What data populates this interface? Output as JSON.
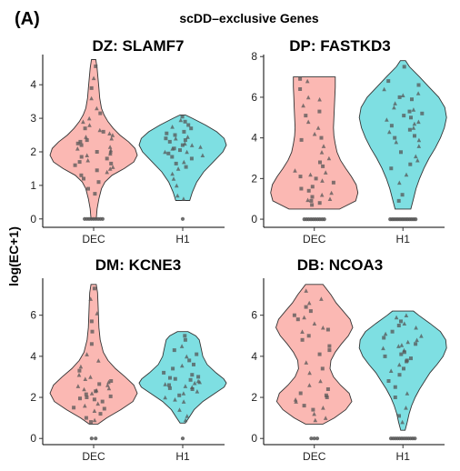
{
  "figure": {
    "panel_label": "(A)",
    "title": "scDD–exclusive Genes",
    "ylabel": "log(EC+1)"
  },
  "colors": {
    "DEC": "#F8766D",
    "H1": "#00BFC4",
    "DEC_fill": "#FBB8B3",
    "H1_fill": "#7EDFE2",
    "point": "#555555"
  },
  "chart_data": [
    {
      "type": "violin",
      "title": "DZ: SLAMF7",
      "categories": [
        "DEC",
        "H1"
      ],
      "yticks": [
        0,
        1,
        2,
        3,
        4
      ],
      "ylim": [
        -0.25,
        4.9
      ],
      "groups": [
        {
          "name": "DEC",
          "range": [
            0,
            4.75
          ],
          "zero_count": 9,
          "density": [
            [
              0,
              0.06
            ],
            [
              0.3,
              0.08
            ],
            [
              0.6,
              0.12
            ],
            [
              0.9,
              0.18
            ],
            [
              1.1,
              0.26
            ],
            [
              1.3,
              0.42
            ],
            [
              1.5,
              0.7
            ],
            [
              1.7,
              0.92
            ],
            [
              1.9,
              1.0
            ],
            [
              2.1,
              0.95
            ],
            [
              2.3,
              0.8
            ],
            [
              2.5,
              0.6
            ],
            [
              2.7,
              0.45
            ],
            [
              2.9,
              0.33
            ],
            [
              3.1,
              0.24
            ],
            [
              3.3,
              0.18
            ],
            [
              3.6,
              0.14
            ],
            [
              3.9,
              0.12
            ],
            [
              4.2,
              0.1
            ],
            [
              4.5,
              0.08
            ],
            [
              4.75,
              0.05
            ]
          ],
          "points": [
            2.1,
            1.8,
            2.4,
            1.6,
            2.9,
            1.2,
            3.3,
            2.0,
            1.5,
            2.6,
            1.9,
            2.2,
            3.0,
            1.1,
            2.5,
            1.7,
            2.8,
            0.9,
            3.6,
            2.3,
            1.4,
            2.7,
            1.95,
            3.9,
            2.05,
            1.65,
            2.45,
            0.75,
            4.2,
            1.85,
            2.15,
            2.35,
            1.55,
            3.15,
            2.55,
            1.3,
            2.0,
            4.55,
            1.75,
            2.25,
            2.65,
            1.45
          ]
        },
        {
          "name": "H1",
          "range": [
            0.55,
            3.1
          ],
          "zero_count": 1,
          "density": [
            [
              0.55,
              0.16
            ],
            [
              0.8,
              0.22
            ],
            [
              1.1,
              0.32
            ],
            [
              1.4,
              0.48
            ],
            [
              1.7,
              0.7
            ],
            [
              2.0,
              0.92
            ],
            [
              2.2,
              1.0
            ],
            [
              2.4,
              0.95
            ],
            [
              2.6,
              0.78
            ],
            [
              2.8,
              0.52
            ],
            [
              3.0,
              0.22
            ],
            [
              3.1,
              0.06
            ]
          ],
          "points": [
            2.1,
            2.3,
            1.9,
            2.5,
            1.7,
            2.7,
            2.0,
            2.2,
            1.5,
            2.9,
            2.4,
            1.8,
            1.2,
            2.6,
            2.0,
            2.35,
            1.0,
            2.8,
            2.15,
            1.65,
            2.45,
            3.05,
            0.7,
            1.95,
            2.25,
            2.55,
            1.35,
            2.05,
            2.75,
            1.85,
            0.6,
            2.4,
            2.2,
            1.55,
            2.95,
            2.1
          ]
        }
      ]
    },
    {
      "type": "violin",
      "title": "DP: FASTKD3",
      "categories": [
        "DEC",
        "H1"
      ],
      "yticks": [
        0,
        2,
        4,
        6,
        8
      ],
      "ylim": [
        -0.4,
        8.1
      ],
      "groups": [
        {
          "name": "DEC",
          "range": [
            0.5,
            7.0
          ],
          "zero_count": 10,
          "density": [
            [
              0.5,
              0.58
            ],
            [
              0.9,
              0.95
            ],
            [
              1.3,
              1.0
            ],
            [
              1.7,
              0.96
            ],
            [
              2.1,
              0.85
            ],
            [
              2.5,
              0.72
            ],
            [
              2.9,
              0.6
            ],
            [
              3.3,
              0.52
            ],
            [
              3.7,
              0.48
            ],
            [
              4.1,
              0.45
            ],
            [
              4.5,
              0.44
            ],
            [
              5.0,
              0.45
            ],
            [
              5.5,
              0.46
            ],
            [
              6.0,
              0.47
            ],
            [
              6.5,
              0.48
            ],
            [
              7.0,
              0.48
            ]
          ],
          "points": [
            1.0,
            1.5,
            2.2,
            0.8,
            3.0,
            1.8,
            4.2,
            2.6,
            1.2,
            5.1,
            6.0,
            0.9,
            3.6,
            2.0,
            6.8,
            1.4,
            4.8,
            2.8,
            5.6,
            1.1,
            3.3,
            6.4,
            2.4,
            0.7,
            4.5,
            1.6,
            5.9,
            3.9,
            1.9,
            6.9,
            2.3,
            4.0,
            1.3,
            5.3,
            0.95,
            2.1
          ]
        },
        {
          "name": "H1",
          "range": [
            0.5,
            7.8
          ],
          "zero_count": 14,
          "density": [
            [
              0.5,
              0.18
            ],
            [
              1.0,
              0.24
            ],
            [
              1.5,
              0.3
            ],
            [
              2.0,
              0.38
            ],
            [
              2.5,
              0.48
            ],
            [
              3.0,
              0.6
            ],
            [
              3.5,
              0.74
            ],
            [
              4.0,
              0.86
            ],
            [
              4.5,
              0.95
            ],
            [
              5.0,
              1.0
            ],
            [
              5.5,
              0.96
            ],
            [
              6.0,
              0.82
            ],
            [
              6.5,
              0.6
            ],
            [
              7.0,
              0.38
            ],
            [
              7.5,
              0.15
            ],
            [
              7.8,
              0.06
            ]
          ],
          "points": [
            4.5,
            5.2,
            3.8,
            6.0,
            4.9,
            2.5,
            5.5,
            4.1,
            6.4,
            3.3,
            4.7,
            5.9,
            1.8,
            5.0,
            4.3,
            6.8,
            3.6,
            5.3,
            2.9,
            4.6,
            6.2,
            1.2,
            5.7,
            4.0,
            3.1,
            7.5,
            4.8,
            5.1,
            2.2,
            6.6,
            3.9,
            0.9,
            5.4,
            4.4,
            6.1,
            2.7
          ]
        }
      ]
    },
    {
      "type": "violin",
      "title": "DM: KCNE3",
      "categories": [
        "DEC",
        "H1"
      ],
      "yticks": [
        0,
        2,
        4,
        6
      ],
      "ylim": [
        -0.3,
        7.8
      ],
      "groups": [
        {
          "name": "DEC",
          "range": [
            0.7,
            7.5
          ],
          "zero_count": 2,
          "density": [
            [
              0.7,
              0.1
            ],
            [
              1.0,
              0.3
            ],
            [
              1.4,
              0.62
            ],
            [
              1.8,
              0.9
            ],
            [
              2.2,
              1.0
            ],
            [
              2.6,
              0.92
            ],
            [
              3.0,
              0.72
            ],
            [
              3.4,
              0.5
            ],
            [
              3.8,
              0.33
            ],
            [
              4.2,
              0.22
            ],
            [
              4.8,
              0.15
            ],
            [
              5.4,
              0.12
            ],
            [
              6.0,
              0.11
            ],
            [
              6.6,
              0.1
            ],
            [
              7.1,
              0.09
            ],
            [
              7.5,
              0.06
            ]
          ],
          "points": [
            2.2,
            1.8,
            2.6,
            1.5,
            3.1,
            2.0,
            2.4,
            1.2,
            3.5,
            2.8,
            1.7,
            2.3,
            4.1,
            1.0,
            2.9,
            1.95,
            2.55,
            0.8,
            3.8,
            2.15,
            1.35,
            4.6,
            2.45,
            5.2,
            1.6,
            3.3,
            6.1,
            2.05,
            6.8,
            1.45,
            2.75,
            7.3,
            3.0,
            1.9,
            2.35,
            5.7,
            0.9,
            2.65
          ]
        },
        {
          "name": "H1",
          "range": [
            0.75,
            5.2
          ],
          "zero_count": 1,
          "density": [
            [
              0.75,
              0.06
            ],
            [
              1.0,
              0.14
            ],
            [
              1.4,
              0.26
            ],
            [
              1.8,
              0.46
            ],
            [
              2.2,
              0.74
            ],
            [
              2.5,
              0.95
            ],
            [
              2.7,
              1.0
            ],
            [
              2.9,
              0.94
            ],
            [
              3.2,
              0.76
            ],
            [
              3.6,
              0.56
            ],
            [
              4.0,
              0.46
            ],
            [
              4.4,
              0.42
            ],
            [
              4.8,
              0.38
            ],
            [
              5.0,
              0.3
            ],
            [
              5.2,
              0.12
            ]
          ],
          "points": [
            2.7,
            2.9,
            2.5,
            3.2,
            2.3,
            3.6,
            2.8,
            2.1,
            4.0,
            2.6,
            1.8,
            3.0,
            4.5,
            2.4,
            1.4,
            3.4,
            2.75,
            5.0,
            2.2,
            3.8,
            1.1,
            2.95,
            2.55,
            4.3,
            1.9,
            3.1,
            2.65,
            4.8,
            0.9,
            2.45,
            3.55,
            2.85,
            2.0,
            4.1
          ]
        }
      ]
    },
    {
      "type": "violin",
      "title": "DB: NCOA3",
      "categories": [
        "DEC",
        "H1"
      ],
      "yticks": [
        0,
        2,
        4,
        6
      ],
      "ylim": [
        -0.3,
        7.8
      ],
      "groups": [
        {
          "name": "DEC",
          "range": [
            0.7,
            7.5
          ],
          "zero_count": 3,
          "density": [
            [
              0.7,
              0.2
            ],
            [
              1.0,
              0.46
            ],
            [
              1.4,
              0.72
            ],
            [
              1.8,
              0.86
            ],
            [
              2.2,
              0.8
            ],
            [
              2.6,
              0.6
            ],
            [
              3.0,
              0.44
            ],
            [
              3.4,
              0.36
            ],
            [
              3.8,
              0.38
            ],
            [
              4.2,
              0.48
            ],
            [
              4.6,
              0.62
            ],
            [
              5.0,
              0.78
            ],
            [
              5.4,
              0.88
            ],
            [
              5.8,
              0.82
            ],
            [
              6.2,
              0.66
            ],
            [
              6.6,
              0.5
            ],
            [
              7.0,
              0.38
            ],
            [
              7.5,
              0.2
            ]
          ],
          "points": [
            1.5,
            2.0,
            5.2,
            6.0,
            1.2,
            4.5,
            5.6,
            2.4,
            3.2,
            6.4,
            1.8,
            5.0,
            0.9,
            4.1,
            6.8,
            2.2,
            5.4,
            1.4,
            3.7,
            6.2,
            2.8,
            5.8,
            1.0,
            4.8,
            7.2,
            1.6,
            2.6,
            5.3,
            6.6,
            3.4,
            1.9,
            4.3,
            5.9,
            2.1
          ]
        },
        {
          "name": "H1",
          "range": [
            0.4,
            6.2
          ],
          "zero_count": 12,
          "density": [
            [
              0.4,
              0.05
            ],
            [
              0.8,
              0.1
            ],
            [
              1.2,
              0.14
            ],
            [
              1.6,
              0.2
            ],
            [
              2.0,
              0.28
            ],
            [
              2.4,
              0.38
            ],
            [
              2.8,
              0.5
            ],
            [
              3.2,
              0.62
            ],
            [
              3.6,
              0.78
            ],
            [
              4.0,
              0.92
            ],
            [
              4.4,
              1.0
            ],
            [
              4.8,
              0.98
            ],
            [
              5.2,
              0.86
            ],
            [
              5.6,
              0.62
            ],
            [
              6.0,
              0.36
            ],
            [
              6.2,
              0.24
            ]
          ],
          "points": [
            4.5,
            4.2,
            5.0,
            3.8,
            4.7,
            5.5,
            3.3,
            4.0,
            6.0,
            2.8,
            4.4,
            5.2,
            2.2,
            4.9,
            3.6,
            5.7,
            1.5,
            4.1,
            5.4,
            3.1,
            0.8,
            4.6,
            5.9,
            2.5,
            4.3,
            3.9,
            5.1,
            1.1,
            4.8,
            3.4,
            5.6,
            2.0,
            4.55,
            3.75
          ]
        }
      ]
    }
  ]
}
